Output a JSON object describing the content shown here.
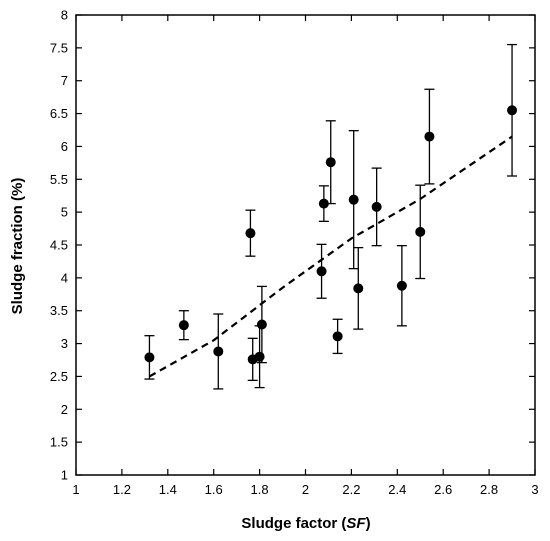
{
  "chart_data": {
    "type": "scatter",
    "title": "",
    "xlabel": "Sludge factor (SF)",
    "xlabel_parts": [
      "Sludge factor (",
      "SF",
      ")"
    ],
    "ylabel": "Sludge fraction (%)",
    "xlim": [
      1,
      3
    ],
    "ylim": [
      1,
      8
    ],
    "xticks": [
      1,
      1.2,
      1.4,
      1.6,
      1.8,
      2,
      2.2,
      2.4,
      2.6,
      2.8,
      3
    ],
    "yticks": [
      1,
      1.5,
      2,
      2.5,
      3,
      3.5,
      4,
      4.5,
      5,
      5.5,
      6,
      6.5,
      7,
      7.5,
      8
    ],
    "grid": false,
    "legend": "none",
    "points": [
      {
        "x": 1.32,
        "y": 2.79,
        "err": 0.33
      },
      {
        "x": 1.47,
        "y": 3.28,
        "err": 0.22
      },
      {
        "x": 1.62,
        "y": 2.88,
        "err": 0.57
      },
      {
        "x": 1.76,
        "y": 4.68,
        "err": 0.35
      },
      {
        "x": 1.77,
        "y": 2.76,
        "err": 0.32
      },
      {
        "x": 1.8,
        "y": 2.8,
        "err": 0.47
      },
      {
        "x": 1.81,
        "y": 3.29,
        "err": 0.58
      },
      {
        "x": 2.07,
        "y": 4.1,
        "err": 0.41
      },
      {
        "x": 2.08,
        "y": 5.13,
        "err": 0.27
      },
      {
        "x": 2.11,
        "y": 5.76,
        "err": 0.63
      },
      {
        "x": 2.14,
        "y": 3.11,
        "err": 0.26
      },
      {
        "x": 2.21,
        "y": 5.19,
        "err": 1.05
      },
      {
        "x": 2.23,
        "y": 3.84,
        "err": 0.62
      },
      {
        "x": 2.31,
        "y": 5.08,
        "err": 0.59
      },
      {
        "x": 2.42,
        "y": 3.88,
        "err": 0.61
      },
      {
        "x": 2.5,
        "y": 4.7,
        "err": 0.71
      },
      {
        "x": 2.54,
        "y": 6.15,
        "err": 0.72
      },
      {
        "x": 2.9,
        "y": 6.55,
        "err": 1.0
      }
    ],
    "trendline": {
      "style": "dashed",
      "x": [
        1.32,
        1.6,
        1.9,
        2.2,
        2.5,
        2.9
      ],
      "y": [
        2.5,
        3.05,
        3.85,
        4.6,
        5.2,
        6.15
      ]
    },
    "colors": {
      "marker": "#000000",
      "line": "#000000"
    }
  }
}
